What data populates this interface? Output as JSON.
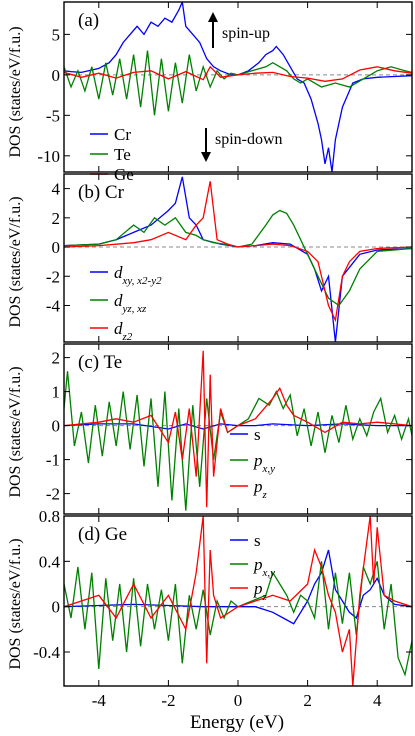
{
  "figure": {
    "ylabel": "DOS (states/eV/f.u.)",
    "xlabel": "Energy (eV)"
  },
  "chart_data": [
    {
      "type": "line",
      "panel": "(a)",
      "xlim": [
        -5,
        5
      ],
      "ylim": [
        -12,
        9
      ],
      "yticks": [
        -10,
        -5,
        0,
        5
      ],
      "xticks": [
        -4,
        -2,
        0,
        2,
        4
      ],
      "annotations": [
        "spin-up",
        "spin-down"
      ],
      "series": [
        {
          "name": "Cr",
          "color": "#0000ff",
          "x": [
            -5,
            -4.8,
            -4.5,
            -4.2,
            -4,
            -3.7,
            -3.5,
            -3.3,
            -3.1,
            -2.9,
            -2.7,
            -2.5,
            -2.3,
            -2.1,
            -1.9,
            -1.7,
            -1.6,
            -1.5,
            -1.3,
            -1.1,
            -0.9,
            -0.7,
            -0.5,
            -0.2,
            0,
            0.3,
            0.6,
            0.8,
            1,
            1.1,
            1.3,
            1.5,
            1.7,
            1.9,
            2.1,
            2.3,
            2.4,
            2.5,
            2.6,
            2.7,
            2.8,
            3,
            3.3,
            3.6,
            4,
            4.5,
            5
          ],
          "y": [
            0.5,
            0.4,
            0.3,
            0.6,
            0.8,
            1.5,
            2.5,
            4,
            5,
            6,
            5,
            6.5,
            6,
            7,
            6.5,
            8,
            9,
            6,
            5,
            4,
            2,
            1,
            0.5,
            0,
            0,
            0.5,
            1.5,
            2.5,
            3,
            3.5,
            2.5,
            1,
            -0.5,
            -1,
            -3,
            -6,
            -8,
            -11,
            -9,
            -12,
            -8,
            -4,
            -1,
            -0.5,
            -0.3,
            -0.2,
            -0.1
          ]
        },
        {
          "name": "Te",
          "color": "#008000",
          "x": [
            -5,
            -4.8,
            -4.6,
            -4.4,
            -4.2,
            -4,
            -3.8,
            -3.6,
            -3.4,
            -3.2,
            -3,
            -2.8,
            -2.6,
            -2.4,
            -2.2,
            -2,
            -1.8,
            -1.6,
            -1.4,
            -1.2,
            -1,
            -0.8,
            -0.6,
            -0.4,
            -0.2,
            0,
            0.4,
            0.8,
            1,
            1.2,
            1.4,
            1.6,
            1.8,
            2,
            2.4,
            2.8,
            3.2,
            3.6,
            4,
            4.4,
            4.8,
            5
          ],
          "y": [
            1,
            -1.5,
            0.5,
            -2,
            1,
            -3,
            1.5,
            -2.5,
            2,
            -3,
            2.5,
            -4,
            3,
            -5,
            2,
            -4.5,
            1.5,
            -3.5,
            2.5,
            -2,
            1,
            -1.5,
            0.5,
            -0.5,
            0.2,
            0,
            0.5,
            1,
            1.5,
            1,
            0.5,
            -0.5,
            -1,
            -0.5,
            -1.5,
            -1,
            -1.5,
            -0.5,
            0.5,
            1,
            0.5,
            0.3
          ]
        },
        {
          "name": "Ge",
          "color": "#ff0000",
          "x": [
            -5,
            -4.5,
            -4,
            -3.5,
            -3,
            -2.5,
            -2,
            -1.5,
            -1,
            -0.8,
            -0.5,
            0,
            0.5,
            1,
            1.5,
            2,
            2.5,
            3,
            3.5,
            4,
            4.5,
            5
          ],
          "y": [
            0.3,
            -0.3,
            0.2,
            -0.4,
            0.3,
            0.5,
            -0.5,
            0.4,
            -0.6,
            1,
            -0.3,
            0,
            0.2,
            0.3,
            -0.2,
            -0.4,
            -0.8,
            -0.5,
            0.6,
            1,
            0.5,
            0.2
          ]
        }
      ]
    },
    {
      "type": "line",
      "panel": "(b) Cr",
      "xlim": [
        -5,
        5
      ],
      "ylim": [
        -6.5,
        5
      ],
      "yticks": [
        -4,
        -2,
        0,
        2,
        4
      ],
      "xticks": [
        -4,
        -2,
        0,
        2,
        4
      ],
      "series": [
        {
          "name": "d_{xy, x^2-y^2}",
          "color": "#0000ff",
          "x": [
            -5,
            -4,
            -3.5,
            -3,
            -2.5,
            -2,
            -1.8,
            -1.6,
            -1.4,
            -1.2,
            -1,
            -0.5,
            0,
            0.5,
            1,
            1.5,
            2,
            2.2,
            2.4,
            2.6,
            2.8,
            3,
            3.5,
            4,
            5
          ],
          "y": [
            0.1,
            0.2,
            0.5,
            1,
            1.5,
            2.5,
            3,
            4.8,
            2,
            1.5,
            0.5,
            0.2,
            0,
            0.1,
            0.3,
            0.2,
            -0.5,
            -1.5,
            -3,
            -2,
            -6.5,
            -2,
            -0.5,
            -0.2,
            -0.1
          ]
        },
        {
          "name": "d_{yz, xz}",
          "color": "#008000",
          "x": [
            -5,
            -4,
            -3.5,
            -3,
            -2.7,
            -2.4,
            -2.1,
            -1.8,
            -1.5,
            -1.2,
            -1,
            -0.7,
            -0.4,
            0,
            0.4,
            0.8,
            1,
            1.2,
            1.4,
            1.6,
            2,
            2.3,
            2.6,
            2.9,
            3.2,
            3.5,
            4,
            5
          ],
          "y": [
            0.1,
            0.2,
            0.5,
            1.5,
            1,
            2,
            1.5,
            2,
            1,
            0.8,
            0.5,
            0.3,
            0.2,
            0,
            0.2,
            1.5,
            2.2,
            2.5,
            2.3,
            1.5,
            -0.5,
            -2,
            -3.5,
            -4,
            -3,
            -1.5,
            -0.3,
            -0.1
          ]
        },
        {
          "name": "d_{z^2}",
          "color": "#ff0000",
          "x": [
            -5,
            -4,
            -3,
            -2.5,
            -2,
            -1.5,
            -1.2,
            -1,
            -0.8,
            -0.6,
            -0.3,
            0,
            0.5,
            1,
            1.5,
            2,
            2.3,
            2.6,
            2.8,
            3,
            3.2,
            3.5,
            4,
            5
          ],
          "y": [
            0,
            0.1,
            0.3,
            0.5,
            1,
            0.5,
            1.5,
            2,
            4.5,
            0.5,
            0.2,
            0,
            0.1,
            0.2,
            0.1,
            -0.3,
            -1,
            -4,
            -5,
            -2,
            -1,
            -0.3,
            -0.1,
            0
          ]
        }
      ]
    },
    {
      "type": "line",
      "panel": "(c) Te",
      "xlim": [
        -5,
        5
      ],
      "ylim": [
        -2.6,
        2.4
      ],
      "yticks": [
        -2,
        -1,
        0,
        1,
        2
      ],
      "xticks": [
        -4,
        -2,
        0,
        2,
        4
      ],
      "series": [
        {
          "name": "s",
          "color": "#0000ff",
          "x": [
            -5,
            -4,
            -3,
            -2,
            -1.5,
            -1,
            -0.5,
            0,
            0.5,
            1,
            2,
            3,
            4,
            5
          ],
          "y": [
            0,
            0.05,
            0.05,
            -0.1,
            0.05,
            -0.1,
            0.05,
            0,
            0,
            0.05,
            0,
            0.05,
            0,
            0
          ]
        },
        {
          "name": "p_{x,y}",
          "color": "#008000",
          "x": [
            -5,
            -4.9,
            -4.7,
            -4.5,
            -4.3,
            -4.1,
            -3.9,
            -3.7,
            -3.5,
            -3.3,
            -3.1,
            -2.9,
            -2.7,
            -2.5,
            -2.3,
            -2.1,
            -1.9,
            -1.7,
            -1.5,
            -1.3,
            -1.1,
            -0.9,
            -0.7,
            -0.5,
            -0.3,
            0,
            0.3,
            0.6,
            0.9,
            1.1,
            1.3,
            1.5,
            1.7,
            1.9,
            2.1,
            2.3,
            2.5,
            2.7,
            2.9,
            3.1,
            3.3,
            3.5,
            3.7,
            3.9,
            4.1,
            4.3,
            4.5,
            4.7,
            4.9,
            5
          ],
          "y": [
            0.5,
            1.6,
            -0.6,
            0.4,
            -1.1,
            0.6,
            -0.9,
            0.7,
            -0.6,
            1.0,
            -0.7,
            0.9,
            -1.2,
            0.8,
            -1.8,
            1.0,
            -2.2,
            0.5,
            -2.5,
            0.6,
            -1.8,
            0.8,
            -1.0,
            0.4,
            -0.2,
            0,
            0.2,
            0.8,
            0.6,
            1.0,
            0.5,
            0.9,
            -0.3,
            0.5,
            -0.6,
            0.4,
            -0.8,
            0.3,
            -0.5,
            0.6,
            -0.4,
            0.2,
            -0.3,
            0.4,
            0.8,
            -0.2,
            0.3,
            -0.4,
            0.2,
            -0.3
          ]
        },
        {
          "name": "p_z",
          "color": "#ff0000",
          "x": [
            -5,
            -4.5,
            -4,
            -3.5,
            -3,
            -2.5,
            -2,
            -1.8,
            -1.6,
            -1.4,
            -1.2,
            -1,
            -0.9,
            -0.8,
            -0.7,
            -0.5,
            -0.3,
            0,
            0.5,
            1,
            1.2,
            1.4,
            1.6,
            2,
            2.5,
            3,
            3.5,
            4,
            5
          ],
          "y": [
            0,
            0.05,
            0.1,
            0.2,
            0.1,
            0.3,
            -0.5,
            0.4,
            -1.0,
            0.5,
            -1.5,
            2.2,
            -2.4,
            1.5,
            -1.5,
            0.5,
            -0.2,
            0,
            0.2,
            0.8,
            1.1,
            0.6,
            0.3,
            0.1,
            -0.2,
            0.1,
            0.05,
            0.1,
            0
          ]
        }
      ]
    },
    {
      "type": "line",
      "panel": "(d) Ge",
      "xlim": [
        -5,
        5
      ],
      "ylim": [
        -0.7,
        0.8
      ],
      "yticks": [
        -0.4,
        0,
        0.4,
        0.8
      ],
      "xticks": [
        -4,
        -2,
        0,
        2,
        4
      ],
      "series": [
        {
          "name": "s",
          "color": "#0000ff",
          "x": [
            -5,
            -4,
            -3,
            -2,
            -1,
            0,
            0.5,
            1,
            1.3,
            1.6,
            2,
            2.2,
            2.4,
            2.6,
            2.8,
            3,
            3.2,
            3.4,
            3.6,
            3.8,
            4,
            4.2,
            4.5,
            5
          ],
          "y": [
            0,
            0.01,
            0.02,
            0.01,
            0,
            0,
            0,
            -0.05,
            -0.1,
            -0.15,
            0.05,
            0.2,
            0.3,
            0.5,
            0.15,
            0.05,
            -0.05,
            -0.1,
            0.1,
            0.15,
            0.25,
            0.1,
            0.02,
            0
          ]
        },
        {
          "name": "p_{x,y}",
          "color": "#008000",
          "x": [
            -5,
            -4.8,
            -4.6,
            -4.4,
            -4.2,
            -4,
            -3.8,
            -3.6,
            -3.4,
            -3.2,
            -3,
            -2.8,
            -2.6,
            -2.4,
            -2.2,
            -2,
            -1.8,
            -1.6,
            -1.4,
            -1.2,
            -1,
            -0.8,
            -0.6,
            -0.4,
            -0.2,
            0,
            0.4,
            0.8,
            1,
            1.2,
            1.4,
            1.6,
            1.8,
            2,
            2.2,
            2.4,
            2.6,
            2.8,
            3,
            3.2,
            3.4,
            3.6,
            3.8,
            4,
            4.2,
            4.4,
            4.6,
            4.8,
            5
          ],
          "y": [
            0.2,
            -0.1,
            0.35,
            -0.2,
            0.3,
            -0.55,
            0.25,
            -0.3,
            0.2,
            -0.4,
            0.25,
            -0.35,
            0.2,
            -0.2,
            0.15,
            -0.3,
            0.2,
            -0.5,
            0.1,
            -0.2,
            0.15,
            -0.25,
            0.05,
            -0.1,
            0.05,
            0,
            0.05,
            0.1,
            0.3,
            0.2,
            0.1,
            -0.05,
            0.1,
            0.05,
            -0.1,
            0.4,
            -0.2,
            0.3,
            -0.15,
            0.3,
            -0.25,
            0.35,
            0.2,
            0.4,
            -0.2,
            0.2,
            -0.45,
            -0.6,
            -0.3
          ]
        },
        {
          "name": "p_z",
          "color": "#ff0000",
          "x": [
            -5,
            -4.5,
            -4,
            -3.5,
            -3,
            -2.5,
            -2,
            -1.5,
            -1.2,
            -1,
            -0.9,
            -0.8,
            -0.7,
            -0.5,
            0,
            0.5,
            1,
            1.5,
            2,
            2.2,
            2.4,
            2.6,
            2.8,
            3,
            3.2,
            3.3,
            3.5,
            3.8,
            3.9,
            4,
            4.2,
            4.5,
            5
          ],
          "y": [
            0,
            0.05,
            0.1,
            -0.1,
            0.2,
            -0.1,
            0.1,
            -0.2,
            0.3,
            0.8,
            -0.5,
            0.5,
            0.1,
            -0.1,
            0,
            0.05,
            0.1,
            0.05,
            0.2,
            0.5,
            0.35,
            0.1,
            -0.05,
            -0.4,
            -0.2,
            -0.7,
            0.1,
            0.8,
            0.2,
            0.7,
            0.1,
            0.05,
            0
          ]
        }
      ]
    }
  ]
}
